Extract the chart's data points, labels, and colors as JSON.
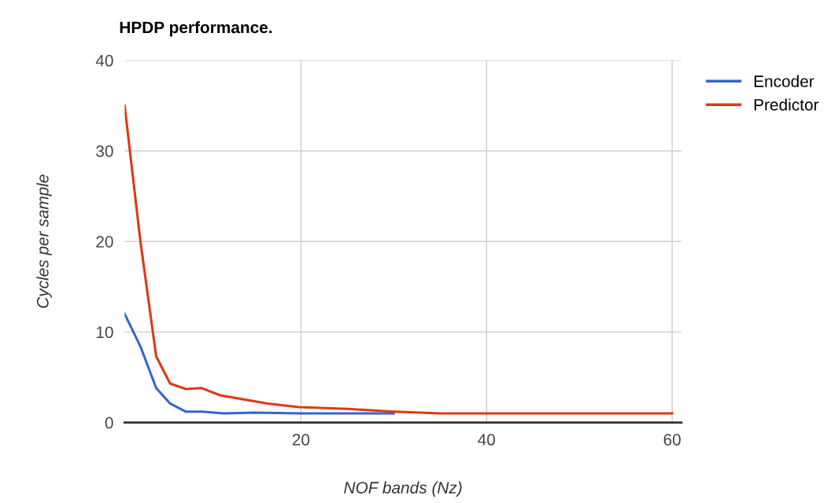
{
  "chart_data": {
    "type": "line",
    "title": "HPDP performance.",
    "xlabel": "NOF bands (Nz)",
    "ylabel": "Cycles per sample",
    "xlim": [
      1,
      61
    ],
    "ylim": [
      0,
      40
    ],
    "xticks": [
      20,
      40,
      60
    ],
    "yticks": [
      0,
      10,
      20,
      30,
      40
    ],
    "grid": true,
    "legend": "top right",
    "marker": "none",
    "line_style": "solid",
    "series": [
      {
        "name": "Encoder",
        "color": "#3366cc",
        "x": [
          1,
          2.7,
          4.4,
          5.9,
          7.6,
          9.3,
          11.7,
          15,
          20,
          30
        ],
        "values": [
          12,
          8.4,
          3.8,
          2.1,
          1.2,
          1.2,
          1.0,
          1.1,
          1.0,
          1.0
        ]
      },
      {
        "name": "Predictor",
        "color": "#dc3912",
        "x": [
          1,
          2.7,
          4.4,
          5.9,
          7.6,
          9.3,
          11.3,
          16.4,
          19.8,
          25,
          30,
          35,
          40,
          50,
          60
        ],
        "values": [
          35,
          20,
          7.3,
          4.3,
          3.7,
          3.8,
          3.0,
          2.1,
          1.7,
          1.5,
          1.2,
          1.0,
          1.0,
          1.0,
          1.0
        ]
      }
    ]
  }
}
